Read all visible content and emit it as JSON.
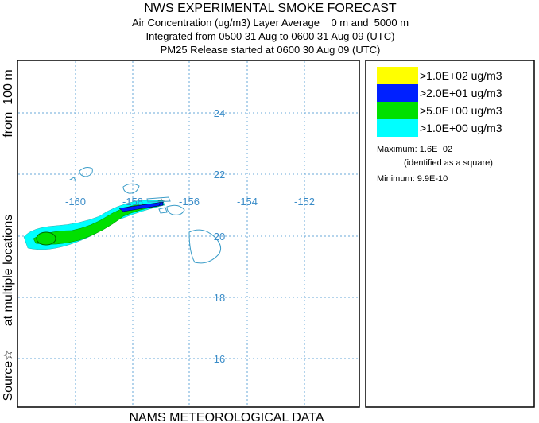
{
  "header": {
    "title": "NWS EXPERIMENTAL SMOKE FORECAST",
    "lines": [
      "Air Concentration (ug/m3) Layer Average    0 m and  5000 m",
      "Integrated from 0500 31 Aug to 0600 31 Aug 09 (UTC)",
      "PM25 Release started at 0600 30 Aug 09 (UTC)"
    ]
  },
  "side_label": [
    "from  100 m",
    "at multiple locations",
    "Source☆"
  ],
  "footer": "NAMS METEOROLOGICAL DATA",
  "map": {
    "longitudes": [
      "-160",
      "-158",
      "-156",
      "-154",
      "-152"
    ],
    "latitudes": [
      "24",
      "22",
      "20",
      "18",
      "16"
    ]
  },
  "legend": {
    "entries": [
      ">1.0E+02 ug/m3",
      ">2.0E+01 ug/m3",
      ">5.0E+00 ug/m3",
      ">1.0E+00 ug/m3"
    ],
    "maximum": "Maximum: 1.6E+02",
    "maximum_note": "(identified as a square)",
    "minimum": "Minimum: 9.9E-10"
  }
}
